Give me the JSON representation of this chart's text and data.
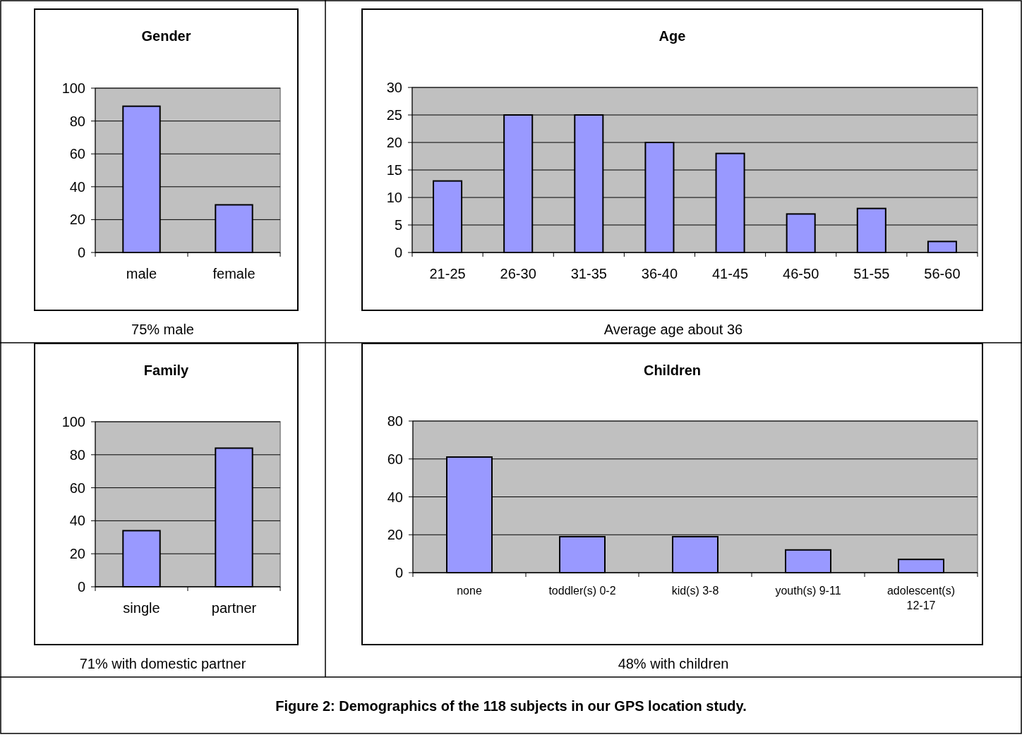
{
  "chart_data": [
    {
      "type": "bar",
      "title": "Gender",
      "categories": [
        "male",
        "female"
      ],
      "values": [
        89,
        29
      ],
      "color": "#9999ff",
      "ylim": [
        0,
        100
      ],
      "yticks": [
        0,
        20,
        40,
        60,
        80,
        100
      ],
      "grid": "y",
      "annotations": [
        "75% male"
      ]
    },
    {
      "type": "bar",
      "title": "Age",
      "categories": [
        "21-25",
        "26-30",
        "31-35",
        "36-40",
        "41-45",
        "46-50",
        "51-55",
        "56-60"
      ],
      "values": [
        13,
        25,
        25,
        20,
        18,
        7,
        8,
        2
      ],
      "color": "#9999ff",
      "ylim": [
        0,
        30
      ],
      "yticks": [
        0,
        5,
        10,
        15,
        20,
        25,
        30
      ],
      "grid": "y",
      "annotations": [
        "Average age about 36"
      ]
    },
    {
      "type": "bar",
      "title": "Family",
      "categories": [
        "single",
        "partner"
      ],
      "values": [
        34,
        84
      ],
      "color": "#9999ff",
      "ylim": [
        0,
        100
      ],
      "yticks": [
        0,
        20,
        40,
        60,
        80,
        100
      ],
      "grid": "y",
      "annotations": [
        "71% with domestic partner"
      ]
    },
    {
      "type": "bar",
      "title": "Children",
      "categories": [
        "none",
        "toddler(s) 0-2",
        "kid(s) 3-8",
        "youth(s) 9-11",
        "adolescent(s) 12-17"
      ],
      "values": [
        61,
        19,
        19,
        12,
        7
      ],
      "color": "#9999ff",
      "ylim": [
        0,
        80
      ],
      "yticks": [
        0,
        20,
        40,
        60,
        80
      ],
      "grid": "y",
      "annotations": [
        "48% with children",
        "Figure 2: Demographics of the 118 subjects in our GPS location study."
      ]
    }
  ]
}
